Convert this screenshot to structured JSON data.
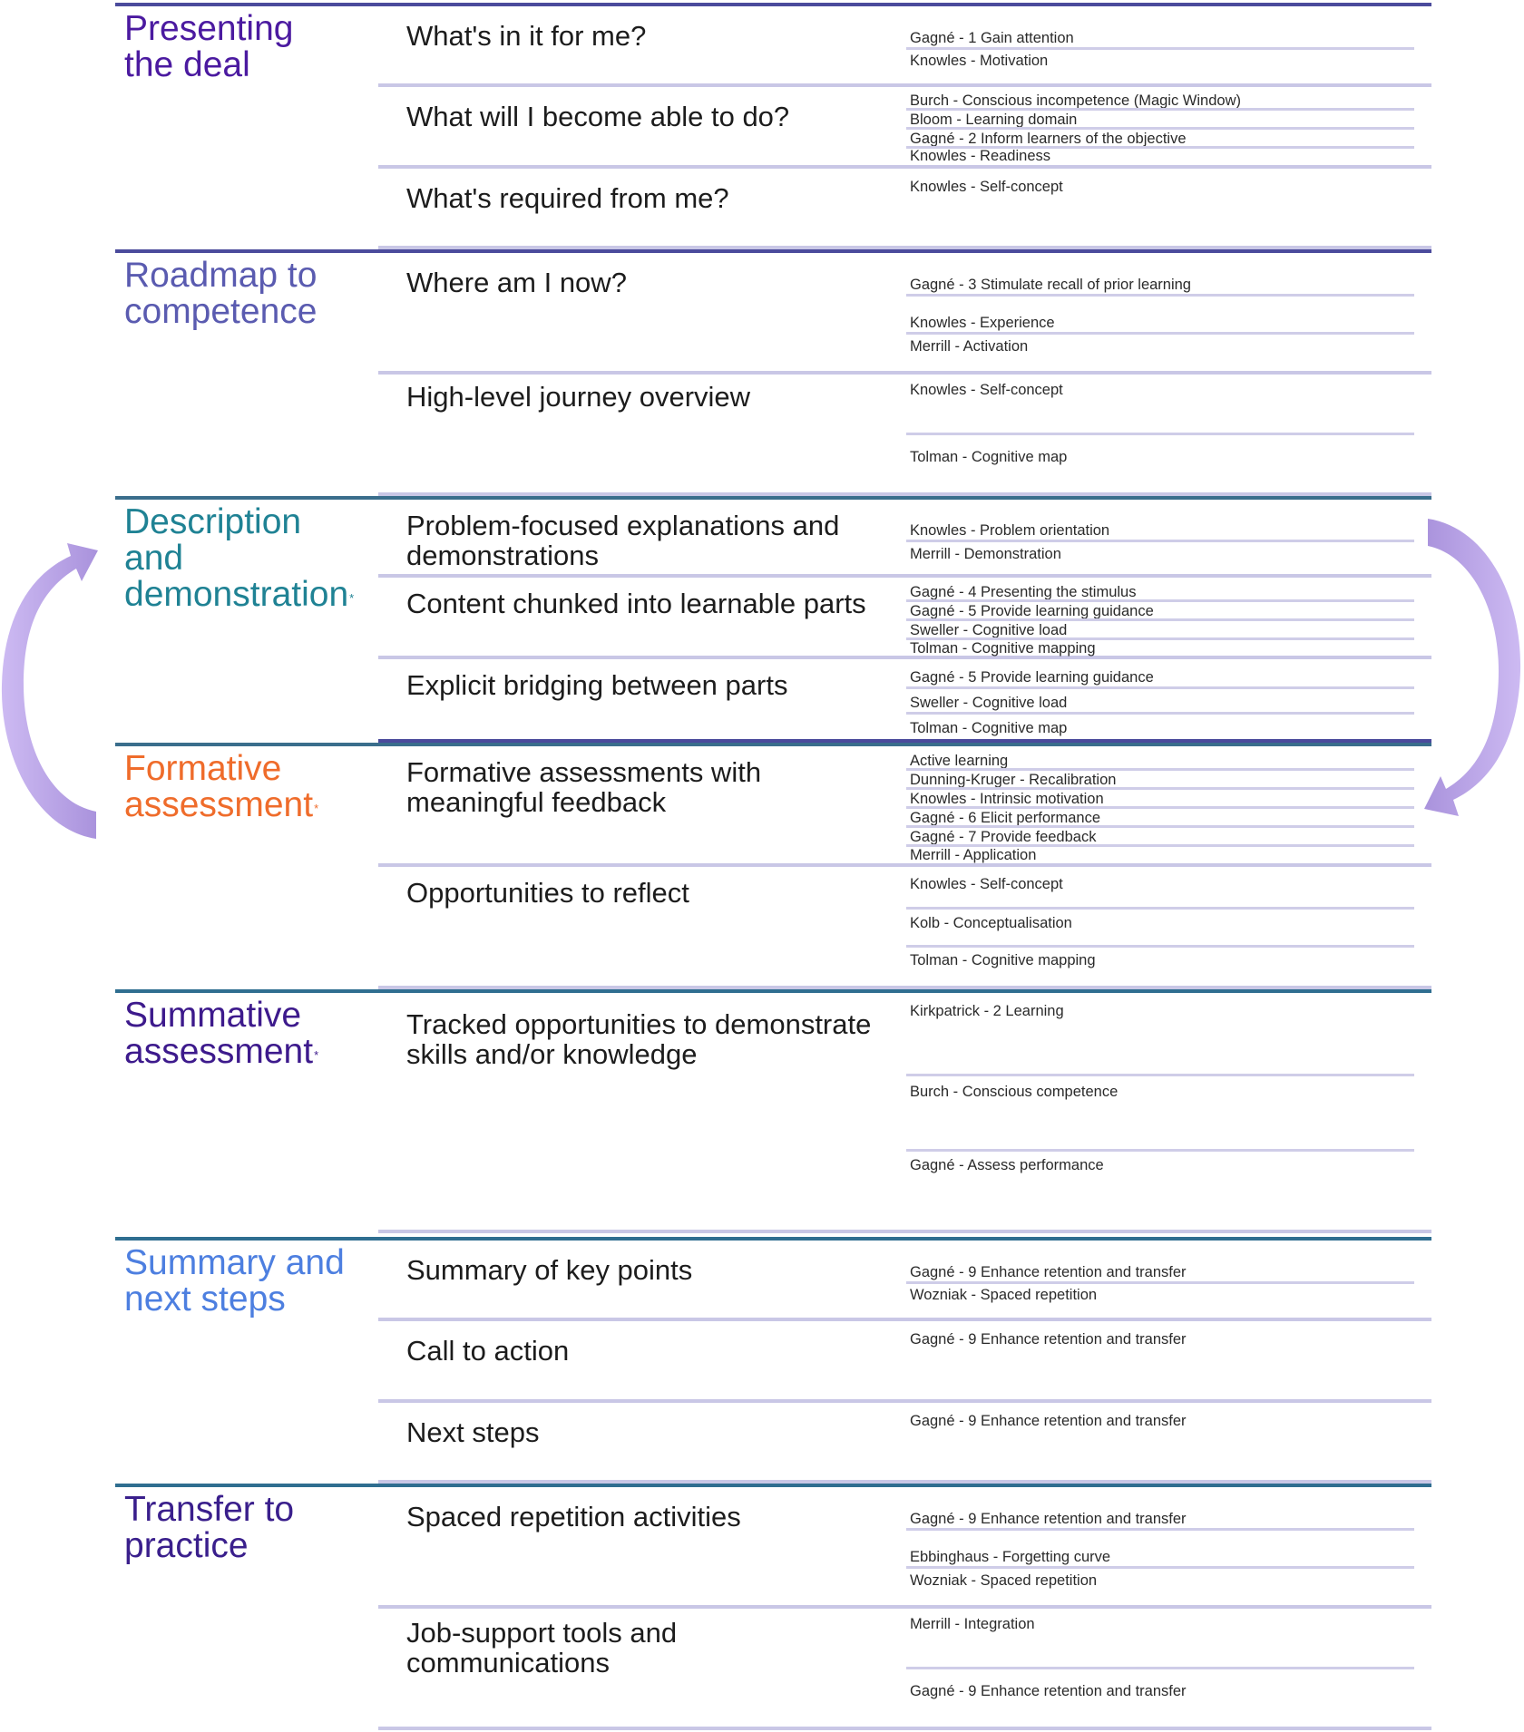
{
  "colors": {
    "presenting": "#4b1aa0",
    "roadmap": "#5a5bb0",
    "description": "#1f8294",
    "formative": "#ef6c2b",
    "summative": "#3d1a8c",
    "summary": "#4d7fe0",
    "transfer": "#3a1f8c",
    "rule_dark": "#4b4b9c",
    "rule_light": "#c9c7e6",
    "arrow": "#c9b4f2"
  },
  "sections": [
    {
      "title": "Presenting\nthe deal",
      "star": false,
      "items": [
        {
          "label": "What's in it for me?",
          "refs": [
            "Gagné - 1 Gain attention",
            "Knowles - Motivation"
          ]
        },
        {
          "label": "What will I become able to do?",
          "refs": [
            "Burch - Conscious incompetence (Magic Window)",
            "Bloom - Learning domain",
            "Gagné - 2 Inform learners of the objective",
            "Knowles - Readiness"
          ]
        },
        {
          "label": "What's required from me?",
          "refs": [
            "Knowles - Self-concept"
          ]
        }
      ]
    },
    {
      "title": "Roadmap to\ncompetence",
      "star": false,
      "items": [
        {
          "label": "Where am I now?",
          "refs": [
            "Gagné - 3 Stimulate recall of prior learning",
            "Knowles - Experience",
            "Merrill - Activation"
          ]
        },
        {
          "label": "High-level journey overview",
          "refs": [
            "Knowles - Self-concept",
            "Tolman - Cognitive map"
          ]
        }
      ]
    },
    {
      "title": "Description\nand\ndemonstration",
      "star": true,
      "items": [
        {
          "label": "Problem-focused explanations and\ndemonstrations",
          "refs": [
            "Knowles - Problem orientation",
            "Merrill - Demonstration"
          ]
        },
        {
          "label": "Content chunked into learnable parts",
          "refs": [
            "Gagné - 4 Presenting the stimulus",
            "Gagné - 5 Provide learning guidance",
            "Sweller - Cognitive load",
            "Tolman - Cognitive mapping"
          ]
        },
        {
          "label": "Explicit bridging between parts",
          "refs": [
            "Gagné - 5 Provide learning guidance",
            "Sweller - Cognitive load",
            "Tolman - Cognitive map"
          ]
        }
      ]
    },
    {
      "title": "Formative\nassessment",
      "star": true,
      "items": [
        {
          "label": "Formative assessments with\nmeaningful feedback",
          "refs": [
            "Active learning",
            "Dunning-Kruger - Recalibration",
            "Knowles - Intrinsic motivation",
            "Gagné - 6 Elicit performance",
            "Gagné - 7 Provide feedback",
            "Merrill - Application"
          ]
        },
        {
          "label": "Opportunities to reflect",
          "refs": [
            "Knowles - Self-concept",
            "Kolb - Conceptualisation",
            "Tolman - Cognitive mapping"
          ]
        }
      ]
    },
    {
      "title": "Summative\nassessment",
      "star": true,
      "items": [
        {
          "label": "Tracked opportunities to demonstrate\nskills and/or knowledge",
          "refs": [
            "Kirkpatrick - 2 Learning",
            "Burch - Conscious competence",
            "Gagné - Assess performance"
          ]
        }
      ]
    },
    {
      "title": "Summary and\nnext steps",
      "star": false,
      "items": [
        {
          "label": "Summary of key points",
          "refs": [
            "Gagné - 9 Enhance retention and transfer",
            "Wozniak - Spaced repetition"
          ]
        },
        {
          "label": "Call to action",
          "refs": [
            "Gagné - 9 Enhance retention and transfer"
          ]
        },
        {
          "label": "Next steps",
          "refs": [
            "Gagné - 9 Enhance retention and transfer"
          ]
        }
      ]
    },
    {
      "title": "Transfer to\npractice",
      "star": false,
      "items": [
        {
          "label": "Spaced repetition activities",
          "refs": [
            "Gagné - 9 Enhance retention and transfer",
            "Ebbinghaus - Forgetting curve",
            "Wozniak - Spaced repetition"
          ]
        },
        {
          "label": "Job-support tools and\ncommunications",
          "refs": [
            "Merrill - Integration",
            "Gagné - 9 Enhance retention and transfer"
          ]
        }
      ]
    }
  ]
}
